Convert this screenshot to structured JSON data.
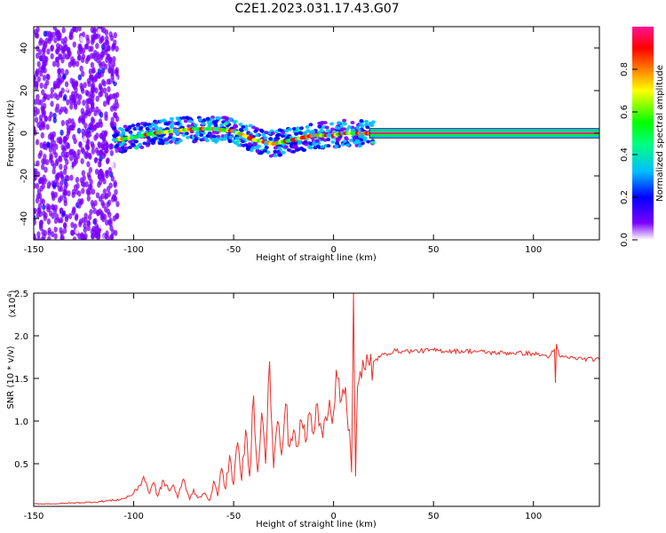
{
  "title": "C2E1.2023.031.17.43.G07",
  "chart_data": [
    {
      "type": "heatmap",
      "xlabel": "Height of straight line (km)",
      "ylabel": "Frequency (Hz)",
      "xlim": [
        -150,
        133
      ],
      "ylim": [
        -50,
        50
      ],
      "x_ticks": [
        "-150",
        "-100",
        "-50",
        "0",
        "50",
        "100"
      ],
      "y_ticks": [
        "-40",
        "-20",
        "0",
        "20",
        "40"
      ],
      "colorbar": {
        "label": "Normalized spectral amplitude",
        "range": [
          0,
          1
        ],
        "ticks": [
          "0.0",
          "0.2",
          "0.4",
          "0.6",
          "0.8"
        ],
        "colors": [
          "#ffffff",
          "#7a00ff",
          "#0000ff",
          "#00bfff",
          "#00ff7f",
          "#00ff00",
          "#ffff00",
          "#ff7f00",
          "#ff0000",
          "#ff1493"
        ]
      },
      "ridge": {
        "x": [
          -108,
          -100,
          -90,
          -80,
          -70,
          -60,
          -50,
          -45,
          -40,
          -35,
          -30,
          -25,
          -20,
          -15,
          -10,
          -5,
          0,
          5,
          10,
          15,
          20,
          40,
          80,
          133
        ],
        "y": [
          -3,
          -2,
          0,
          1,
          2,
          2,
          1,
          -1,
          -3,
          -4,
          -5,
          -4,
          -3,
          -2,
          -1,
          -1,
          -1,
          0,
          0,
          0,
          0,
          0,
          0,
          0
        ]
      }
    },
    {
      "type": "line",
      "xlabel": "Height of straight line (km)",
      "ylabel": "SNR (10 * v/v)",
      "y_scale_label": "(x10",
      "y_scale_exp": "4",
      "y_scale_close": ")",
      "xlim": [
        -150,
        133
      ],
      "ylim": [
        0,
        25000
      ],
      "x_ticks": [
        "-150",
        "-100",
        "-50",
        "0",
        "50",
        "100"
      ],
      "y_ticks": [
        "0.5",
        "1.0",
        "1.5",
        "2.0",
        "2.5"
      ],
      "series": [
        {
          "color": "#e8302a",
          "x": [
            -150,
            -140,
            -130,
            -120,
            -110,
            -105,
            -100,
            -97,
            -95,
            -92,
            -90,
            -88,
            -85,
            -82,
            -80,
            -78,
            -75,
            -72,
            -70,
            -68,
            -65,
            -62,
            -60,
            -58,
            -56,
            -54,
            -52,
            -50,
            -48,
            -46,
            -44,
            -42,
            -40,
            -38,
            -36,
            -34,
            -32,
            -30,
            -28,
            -26,
            -24,
            -22,
            -20,
            -18,
            -16,
            -14,
            -12,
            -10,
            -8,
            -6,
            -4,
            -2,
            0,
            2,
            4,
            6,
            8,
            9,
            10,
            11,
            12,
            14,
            16,
            18,
            20,
            25,
            30,
            35,
            40,
            50,
            60,
            70,
            80,
            90,
            100,
            105,
            108,
            110,
            111,
            112,
            113,
            115,
            120,
            125,
            133
          ],
          "y": [
            300,
            300,
            400,
            500,
            700,
            900,
            1500,
            2500,
            3500,
            1500,
            2800,
            1200,
            3000,
            1800,
            2500,
            1000,
            3200,
            800,
            2000,
            1000,
            1500,
            700,
            3000,
            1200,
            4500,
            2000,
            6000,
            2500,
            7500,
            3000,
            9000,
            3500,
            13000,
            4000,
            11000,
            5000,
            17000,
            4500,
            10000,
            6000,
            12000,
            7000,
            9000,
            7000,
            10000,
            7500,
            11000,
            8500,
            12000,
            9000,
            10500,
            12500,
            11000,
            15000,
            12500,
            14000,
            9000,
            4000,
            25000,
            3500,
            14000,
            15000,
            16000,
            16500,
            17000,
            17800,
            18200,
            18200,
            18200,
            18300,
            18200,
            18200,
            18000,
            18000,
            17900,
            17700,
            17600,
            18200,
            14500,
            18500,
            17600,
            17500,
            17400,
            17300,
            17200
          ]
        }
      ]
    }
  ]
}
